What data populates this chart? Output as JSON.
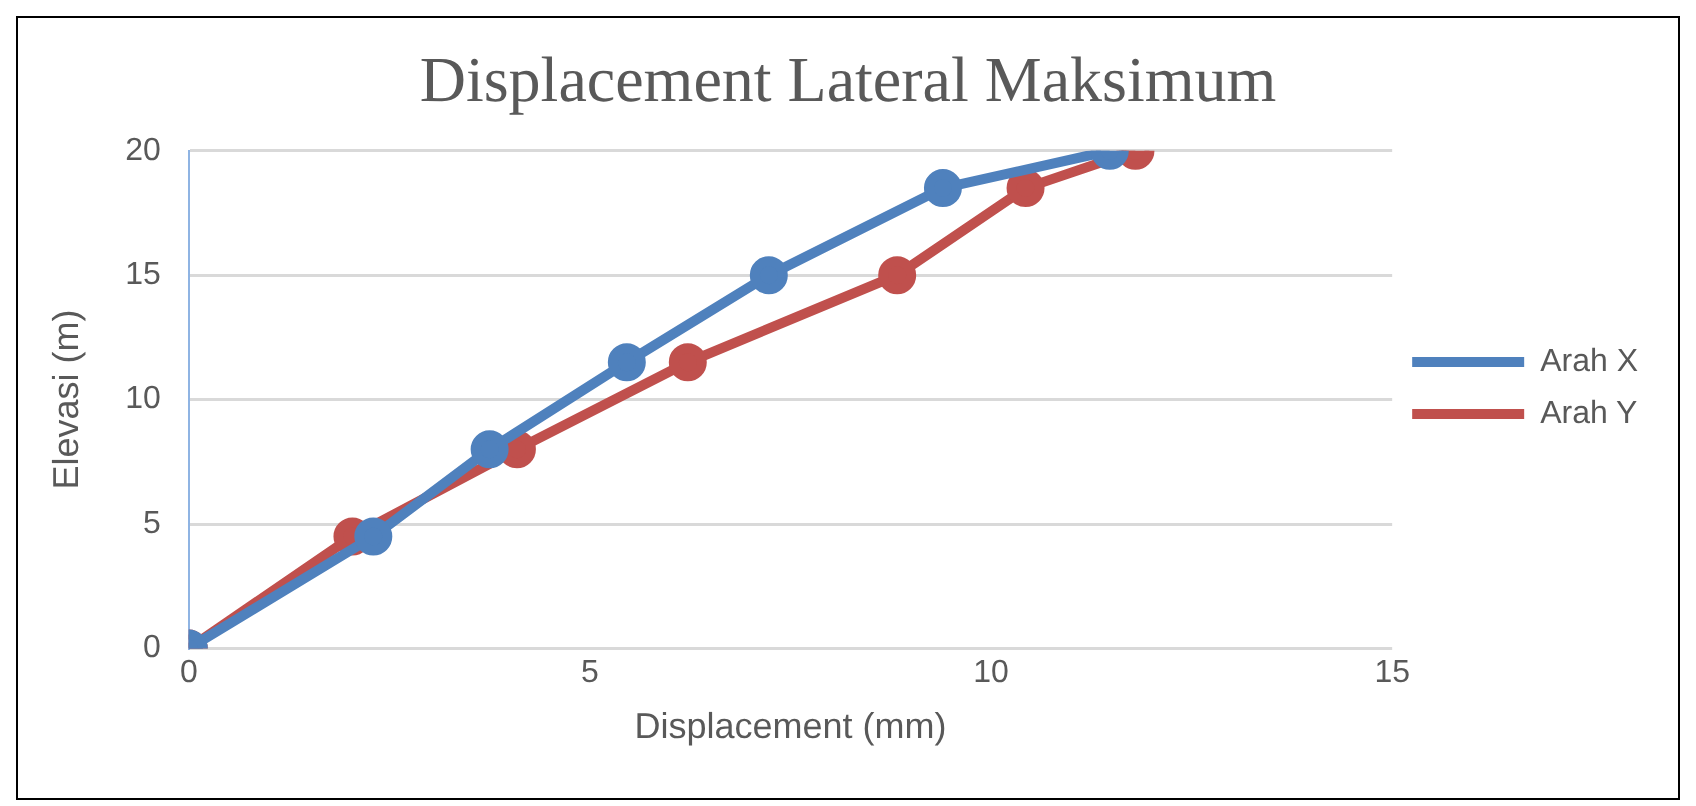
{
  "chart_data": {
    "type": "line",
    "title": "Displacement Lateral Maksimum",
    "xlabel": "Displacement (mm)",
    "ylabel": "Elevasi (m)",
    "xlim": [
      0,
      15
    ],
    "xticks": [
      0,
      5,
      10,
      15
    ],
    "ylim": [
      0,
      20
    ],
    "yticks": [
      0,
      5,
      10,
      15,
      20
    ],
    "grid": "y",
    "legend": "right",
    "marker": "circle",
    "line_style": "solid",
    "series": [
      {
        "name": "Arah X",
        "color": "#4f81bd",
        "x": [
          0,
          2.3,
          3.75,
          5.46,
          7.23,
          9.4,
          11.48
        ],
        "values": [
          0,
          4.5,
          8,
          11.5,
          15,
          18.5,
          20
        ]
      },
      {
        "name": "Arah Y",
        "color": "#c0504d",
        "x": [
          0,
          2.04,
          4.09,
          6.22,
          8.83,
          10.43,
          11.8
        ],
        "values": [
          0,
          4.5,
          8,
          11.5,
          15,
          18.5,
          20
        ]
      }
    ]
  }
}
